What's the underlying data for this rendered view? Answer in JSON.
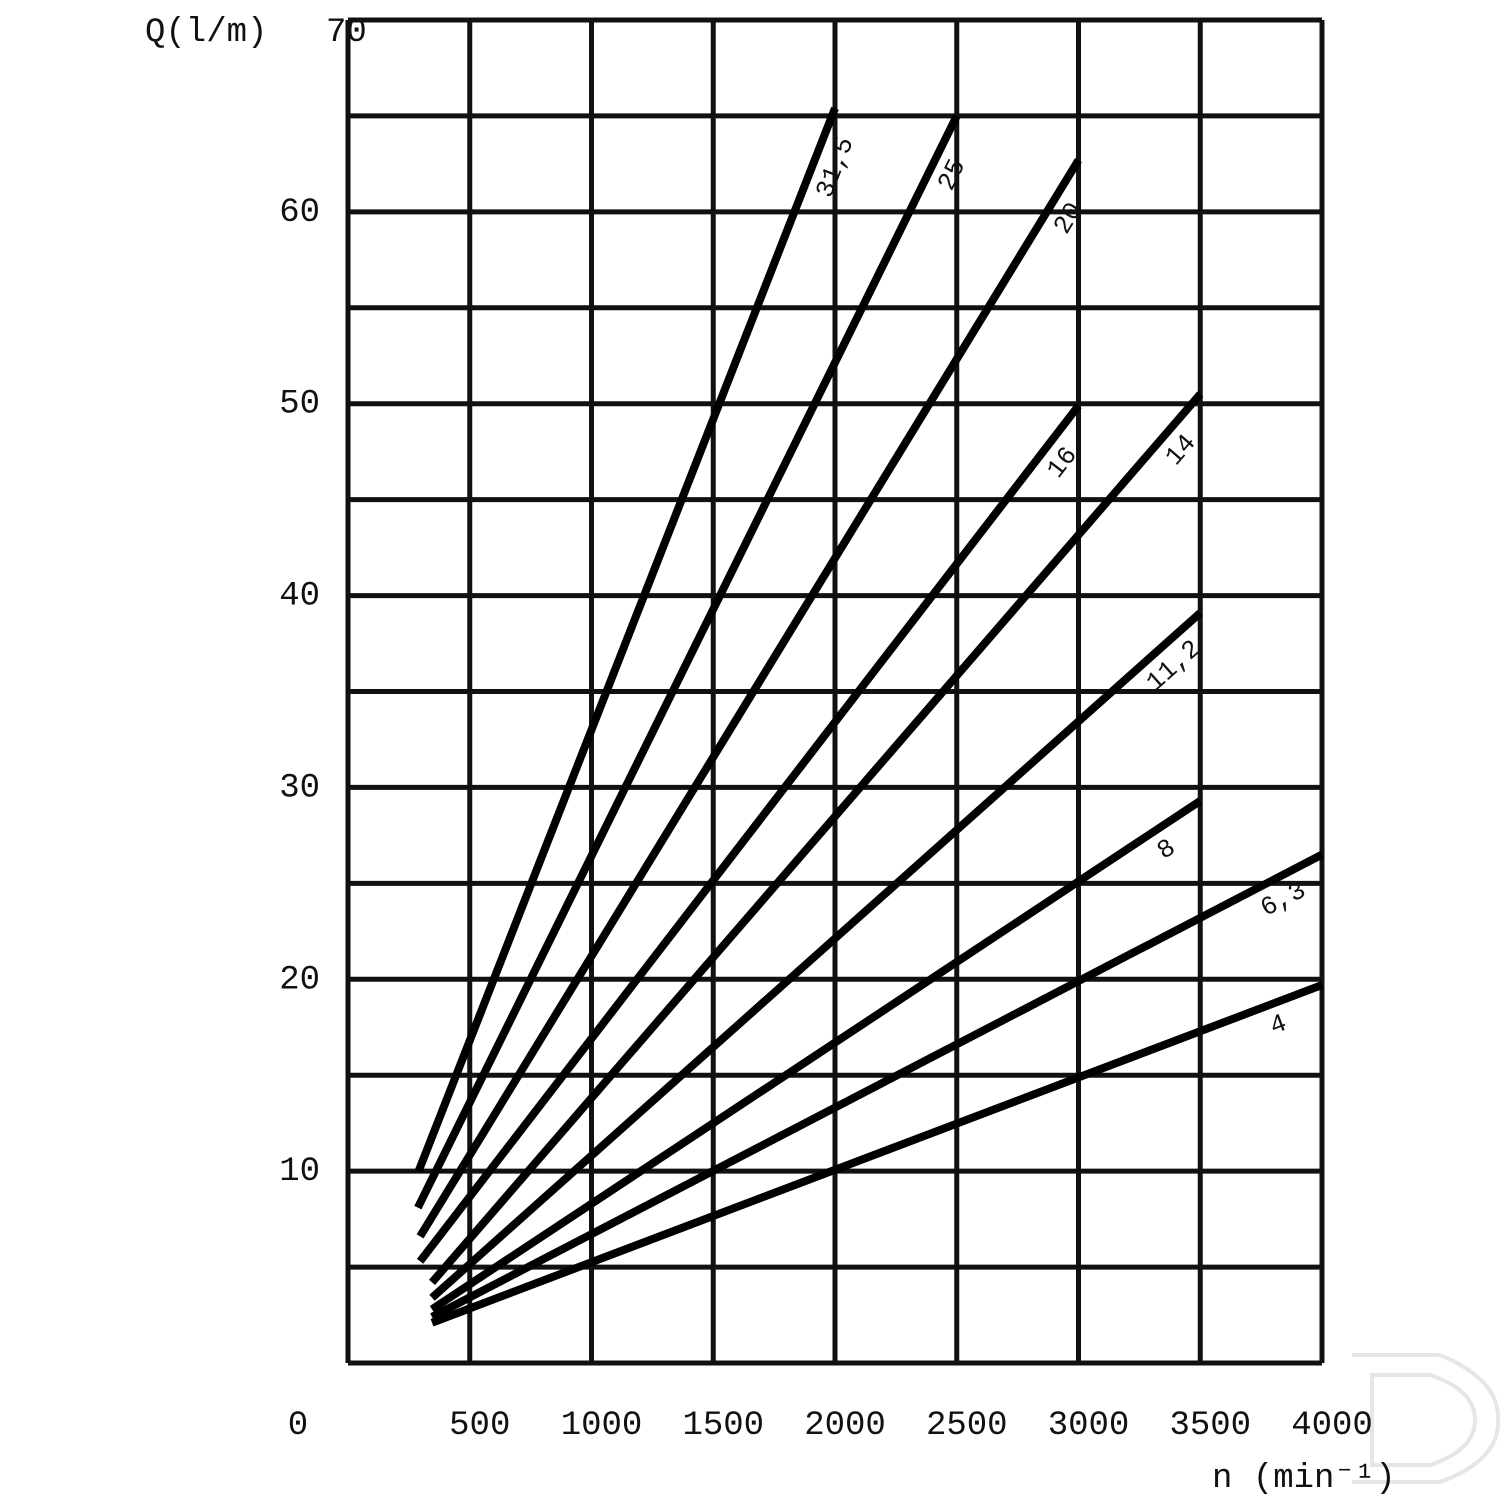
{
  "chart_data": {
    "type": "line",
    "y_label": "Q(l/m)",
    "x_label": "n (min⁻¹)",
    "xlim": [
      0,
      4000
    ],
    "xticks": [
      0,
      500,
      1000,
      1500,
      2000,
      2500,
      3000,
      3500,
      4000
    ],
    "ylim": [
      0,
      70
    ],
    "yticks": [
      10,
      20,
      30,
      40,
      50,
      60,
      70
    ],
    "ygrid": [
      5,
      15,
      25,
      35,
      45,
      55,
      65
    ],
    "grid": true,
    "series": [
      {
        "name": "31,5",
        "color": "#000000",
        "x": [
          290,
          2000
        ],
        "values": [
          10.0,
          65.4
        ]
      },
      {
        "name": "25",
        "color": "#000000",
        "x": [
          287,
          2500
        ],
        "values": [
          8.1,
          65.0
        ]
      },
      {
        "name": "20",
        "color": "#000000",
        "x": [
          296,
          3000
        ],
        "values": [
          6.6,
          62.7
        ]
      },
      {
        "name": "16",
        "color": "#000000",
        "x": [
          296,
          3000
        ],
        "values": [
          5.3,
          49.9
        ]
      },
      {
        "name": "14",
        "color": "#000000",
        "x": [
          345,
          3500
        ],
        "values": [
          4.2,
          50.5
        ]
      },
      {
        "name": "11,2",
        "color": "#000000",
        "x": [
          345,
          3500
        ],
        "values": [
          3.4,
          39.1
        ]
      },
      {
        "name": "8",
        "color": "#000000",
        "x": [
          345,
          3500
        ],
        "values": [
          2.8,
          29.3
        ]
      },
      {
        "name": "6,3",
        "color": "#000000",
        "x": [
          345,
          4000
        ],
        "values": [
          2.4,
          26.5
        ]
      },
      {
        "name": "4",
        "color": "#000000",
        "x": [
          345,
          4000
        ],
        "values": [
          2.1,
          19.7
        ]
      }
    ]
  }
}
